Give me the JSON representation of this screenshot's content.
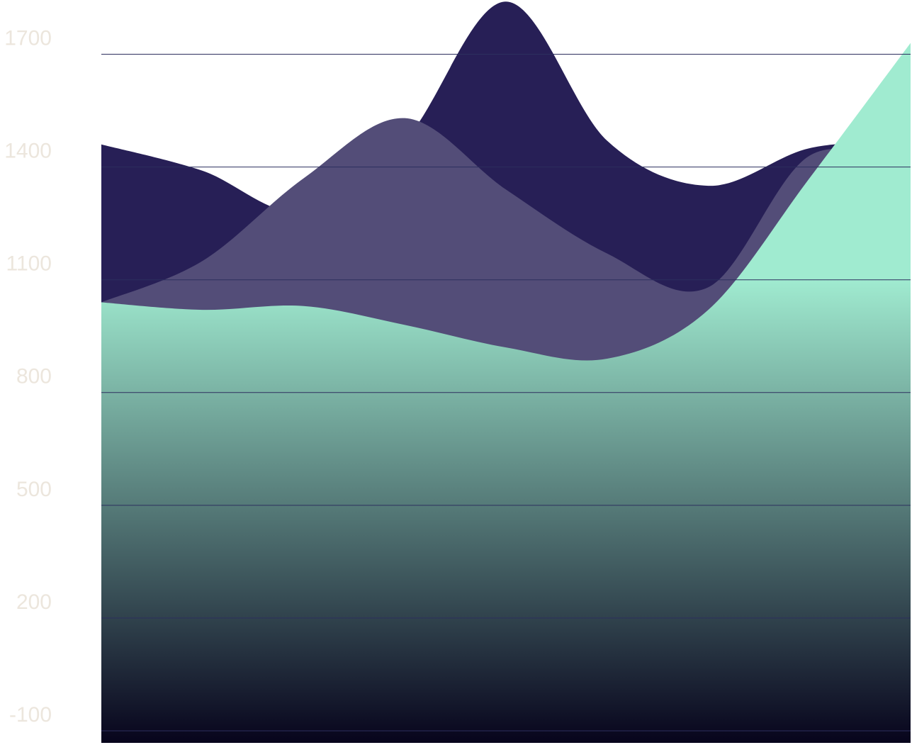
{
  "chart_data": {
    "type": "area",
    "categories": [
      null,
      null,
      null,
      null,
      null,
      null,
      null,
      null,
      null
    ],
    "series": [
      {
        "color": "#271f56",
        "values": [
          1460,
          1390,
          1280,
          1470,
          1840,
          1470,
          1350,
          1450,
          1470
        ]
      },
      {
        "color": "#534d78",
        "values": [
          1040,
          1150,
          1370,
          1530,
          1340,
          1170,
          1080,
          1430,
          1400
        ]
      },
      {
        "color": "#a0ebd0",
        "values": [
          1040,
          1020,
          1030,
          980,
          920,
          890,
          1020,
          1370,
          1730
        ]
      }
    ],
    "ylim": [
      -100,
      1850
    ],
    "yticks": [
      -100,
      200,
      500,
      800,
      1100,
      1400,
      1700
    ],
    "grid": true
  }
}
